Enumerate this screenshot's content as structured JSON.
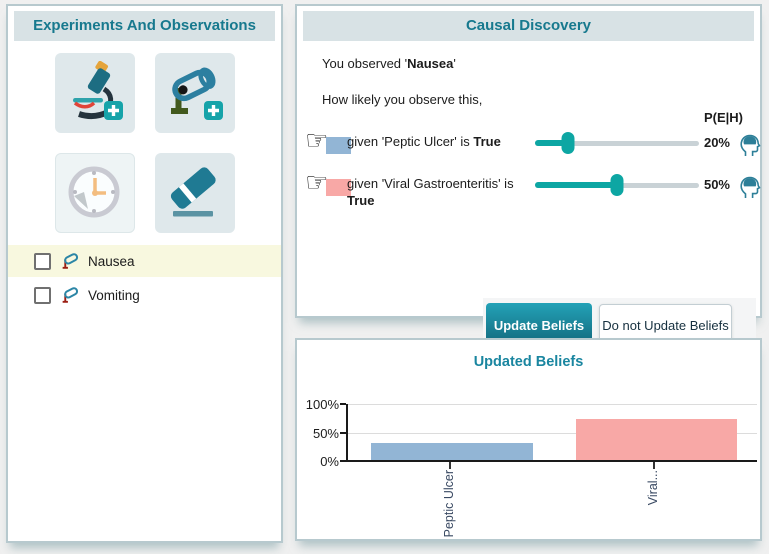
{
  "colors": {
    "accent_teal": "#17798e",
    "slider_teal": "#0da6a3",
    "peptic_blue": "#92b5d5",
    "viral_pink": "#f8a8a6",
    "row_highlight": "#f8f8df"
  },
  "left_panel": {
    "title": "Experiments And Observations",
    "tools": [
      {
        "name": "add-experiment-microscope"
      },
      {
        "name": "add-observation-camera"
      },
      {
        "name": "history-clock"
      },
      {
        "name": "erase"
      }
    ],
    "observations": [
      {
        "label": "Nausea",
        "checked": false,
        "highlighted": true
      },
      {
        "label": "Vomiting",
        "checked": false,
        "highlighted": false
      }
    ]
  },
  "causal_panel": {
    "title": "Causal Discovery",
    "observed_prefix": "You observed '",
    "observed_name": "Nausea",
    "observed_suffix": "'",
    "question": "How likely you observe this,",
    "column_header": "P(E|H)",
    "rows": [
      {
        "label_prefix": "given 'Peptic Ulcer' is ",
        "label_bold": "True",
        "value": 20,
        "percent": "20%",
        "swatch": "#92b5d5"
      },
      {
        "label_prefix": "given 'Viral Gastroenteritis' is ",
        "label_bold": "True",
        "value": 50,
        "percent": "50%",
        "swatch": "#f8a8a6"
      }
    ],
    "update_button": "Update Beliefs",
    "no_update_button": "Do not Update Beliefs"
  },
  "beliefs_panel": {
    "title": "Updated Beliefs",
    "chart_data": {
      "type": "bar",
      "title": "Updated Beliefs",
      "categories": [
        "Peptic Ulcer",
        "Viral..."
      ],
      "values": [
        29,
        71
      ],
      "colors": [
        "#92b5d5",
        "#f8a8a6"
      ],
      "yticks": [
        "0%",
        "50%",
        "100%"
      ],
      "ylim": [
        0,
        100
      ],
      "grid": true,
      "x_tick_rotation": -90,
      "legend": false
    }
  }
}
